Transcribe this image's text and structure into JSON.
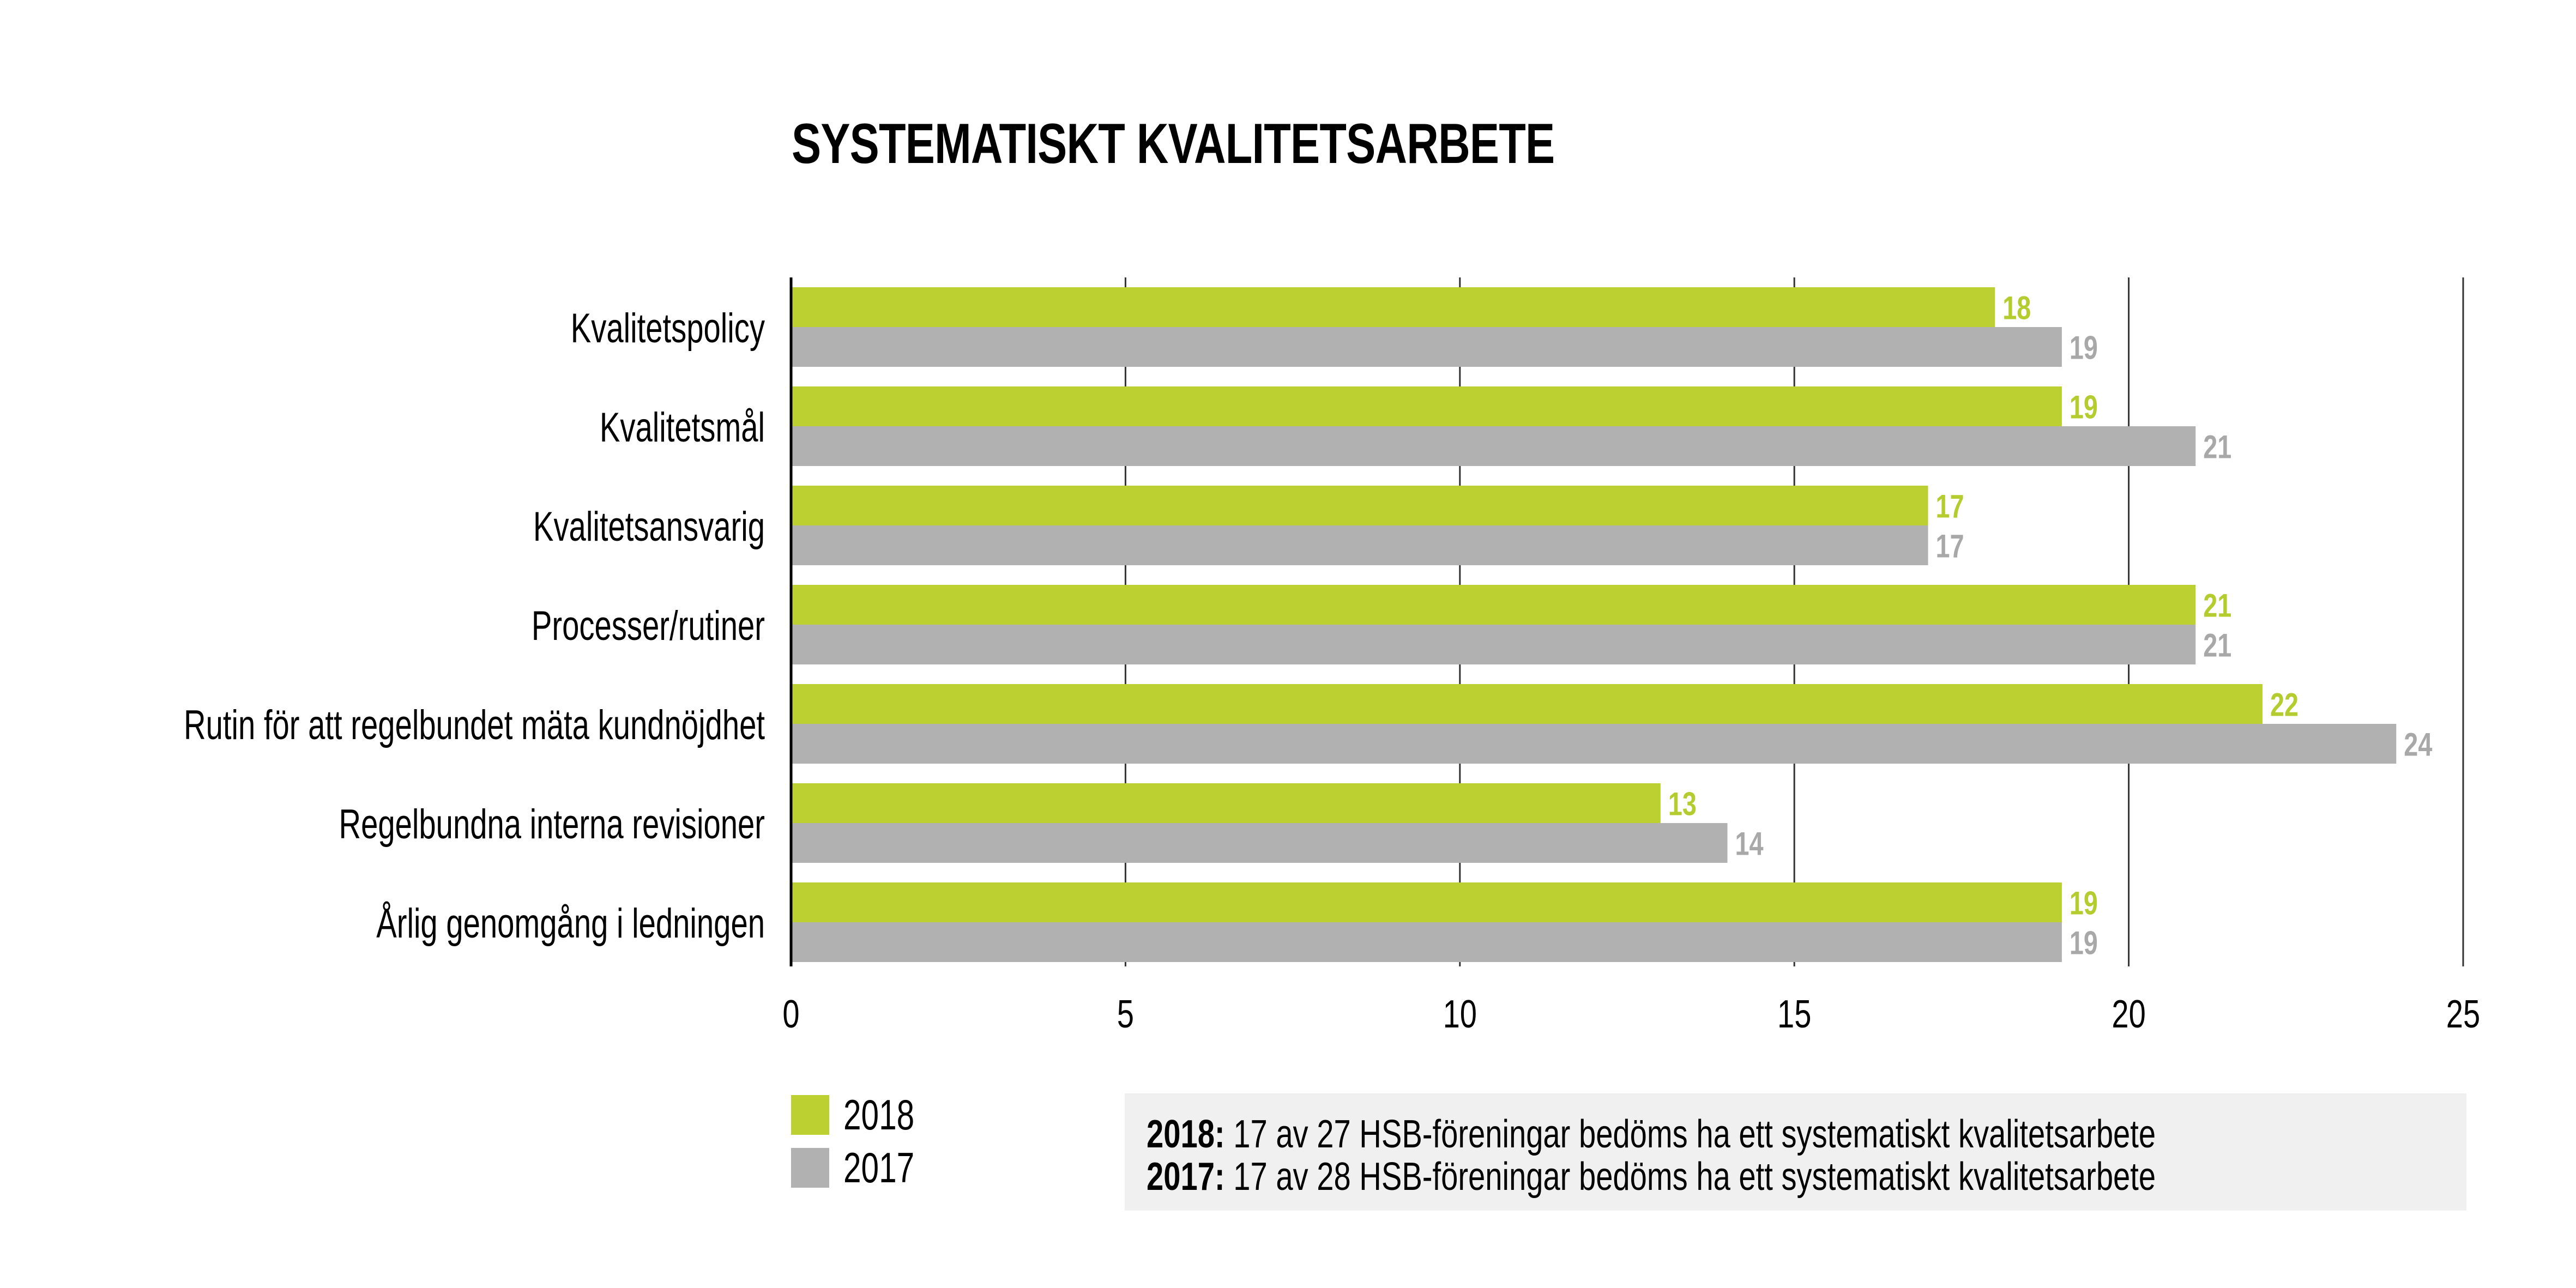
{
  "chart_data": {
    "type": "bar",
    "orientation": "horizontal",
    "title": "SYSTEMATISKT KVALITETSARBETE",
    "xlabel": "",
    "ylabel": "",
    "xlim": [
      0,
      25
    ],
    "x_ticks": [
      "0",
      "5",
      "10",
      "15",
      "20",
      "25"
    ],
    "grid": true,
    "legend_position": "bottom-left",
    "categories": [
      "Kvalitetspolicy",
      "Kvalitetsmål",
      "Kvalitetsansvarig",
      "Processer/rutiner",
      "Rutin för att regelbundet mäta kundnöjdhet",
      "Regelbundna interna revisioner",
      "Årlig genomgång i ledningen"
    ],
    "series": [
      {
        "name": "2018",
        "color": "#bcd031",
        "label_color": "#b5cc2e",
        "values": [
          18,
          19,
          17,
          21,
          22,
          13,
          19
        ]
      },
      {
        "name": "2017",
        "color": "#b2b1b1",
        "label_color": "#a9a8a8",
        "values": [
          19,
          21,
          17,
          21,
          24,
          14,
          19
        ]
      }
    ]
  },
  "legend": [
    {
      "label": "2018",
      "color": "#bcd031"
    },
    {
      "label": "2017",
      "color": "#b2b1b1"
    }
  ],
  "notes": [
    {
      "year": "2018:",
      "text": " 17 av 27 HSB-föreningar bedöms ha ett systematiskt kvalitetsarbete"
    },
    {
      "year": "2017:",
      "text": " 17 av 28 HSB-föreningar bedöms ha ett systematiskt kvalitetsarbete"
    }
  ]
}
